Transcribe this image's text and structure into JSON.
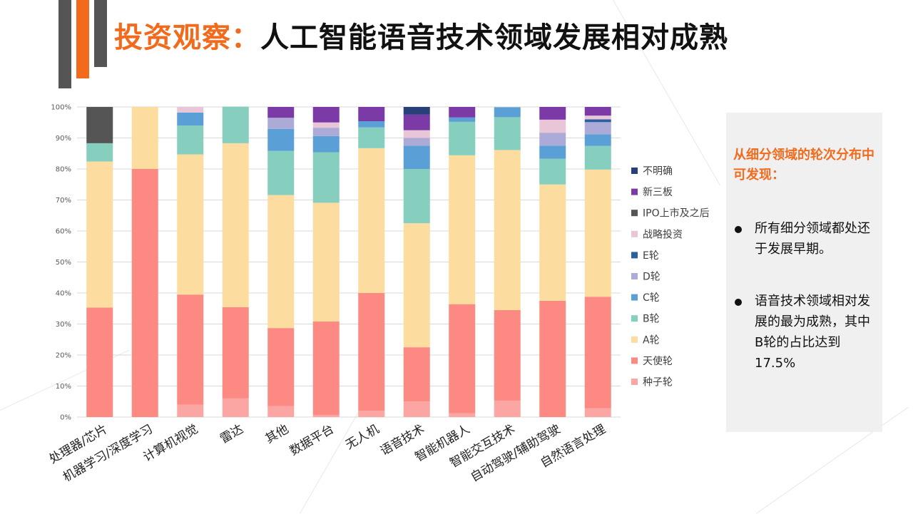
{
  "header": {
    "title_prefix": "投资观察：",
    "title_main": "人工智能语音技术领域发展相对成熟"
  },
  "colors": {
    "accent": "#f26b1d",
    "dark_bar": "#555555"
  },
  "panel": {
    "heading": "从细分领域的轮次分布中可发现：",
    "bullets": [
      "所有细分领域都处还于发展早期。",
      "语音技术领域相对发展的最为成熟，其中B轮的占比达到17.5%"
    ]
  },
  "chart_data": {
    "type": "bar",
    "stacked": true,
    "percent": true,
    "title": "",
    "xlabel": "",
    "ylabel": "",
    "ylim": [
      0,
      100
    ],
    "yticks": [
      "0%",
      "10%",
      "20%",
      "30%",
      "40%",
      "50%",
      "60%",
      "70%",
      "80%",
      "90%",
      "100%"
    ],
    "grid": true,
    "legend_position": "right",
    "categories": [
      "处理器/芯片",
      "机器学习/深度学习",
      "计算机视觉",
      "雷达",
      "其他",
      "数据平台",
      "无人机",
      "语音技术",
      "智能机器人",
      "智能交互技术",
      "自动驾驶/辅助驾驶",
      "自然语言处理"
    ],
    "series": [
      {
        "name": "种子轮",
        "color": "#fba6a3",
        "values": [
          0,
          0,
          4,
          6,
          3.5,
          0.7,
          2,
          5,
          1.2,
          5.3,
          0,
          2.8
        ]
      },
      {
        "name": "天使轮",
        "color": "#fd8983",
        "values": [
          35.3,
          80,
          35.5,
          29.4,
          25.2,
          30.1,
          38,
          17.5,
          35.2,
          29.2,
          37.5,
          36
        ]
      },
      {
        "name": "A轮",
        "color": "#fcdc9f",
        "values": [
          47.1,
          20,
          45.2,
          52.9,
          42.9,
          38.3,
          46.7,
          40,
          48,
          51.6,
          37.5,
          41
        ]
      },
      {
        "name": "B轮",
        "color": "#86cebd",
        "values": [
          5.9,
          0,
          9.3,
          11.8,
          14.2,
          16.3,
          6.7,
          17.5,
          10.8,
          10.6,
          8.3,
          7.6
        ]
      },
      {
        "name": "C轮",
        "color": "#5b9fd7",
        "values": [
          0,
          0,
          4.2,
          0,
          7.1,
          5.2,
          2,
          7.5,
          1.4,
          3.2,
          4.2,
          3.8
        ]
      },
      {
        "name": "D轮",
        "color": "#acaad7",
        "values": [
          0,
          0,
          0,
          0,
          3.6,
          2.7,
          0,
          2.5,
          0,
          0,
          4.2,
          3.9
        ]
      },
      {
        "name": "E轮",
        "color": "#2a5fa0",
        "values": [
          0,
          0,
          0,
          0,
          0,
          0,
          0,
          0,
          0,
          0,
          0,
          0.9
        ]
      },
      {
        "name": "战略投资",
        "color": "#e8c6d8",
        "values": [
          0,
          0,
          1.8,
          0,
          0,
          1.7,
          0,
          2.5,
          0,
          0,
          4.2,
          1.2
        ]
      },
      {
        "name": "IPO上市及之后",
        "color": "#555555",
        "values": [
          11.7,
          0,
          0,
          0,
          0,
          0,
          0,
          0,
          0,
          0,
          0,
          0
        ]
      },
      {
        "name": "新三板",
        "color": "#7b3aa6",
        "values": [
          0,
          0,
          0,
          0,
          3.5,
          5,
          4.6,
          5,
          3.4,
          0,
          4.1,
          2.8
        ]
      },
      {
        "name": "不明确",
        "color": "#27407a",
        "values": [
          0,
          0,
          0,
          0,
          0,
          0,
          0,
          2.5,
          0,
          0,
          0,
          0
        ]
      }
    ],
    "legend_order": [
      "不明确",
      "新三板",
      "IPO上市及之后",
      "战略投资",
      "E轮",
      "D轮",
      "C轮",
      "B轮",
      "A轮",
      "天使轮",
      "种子轮"
    ]
  }
}
